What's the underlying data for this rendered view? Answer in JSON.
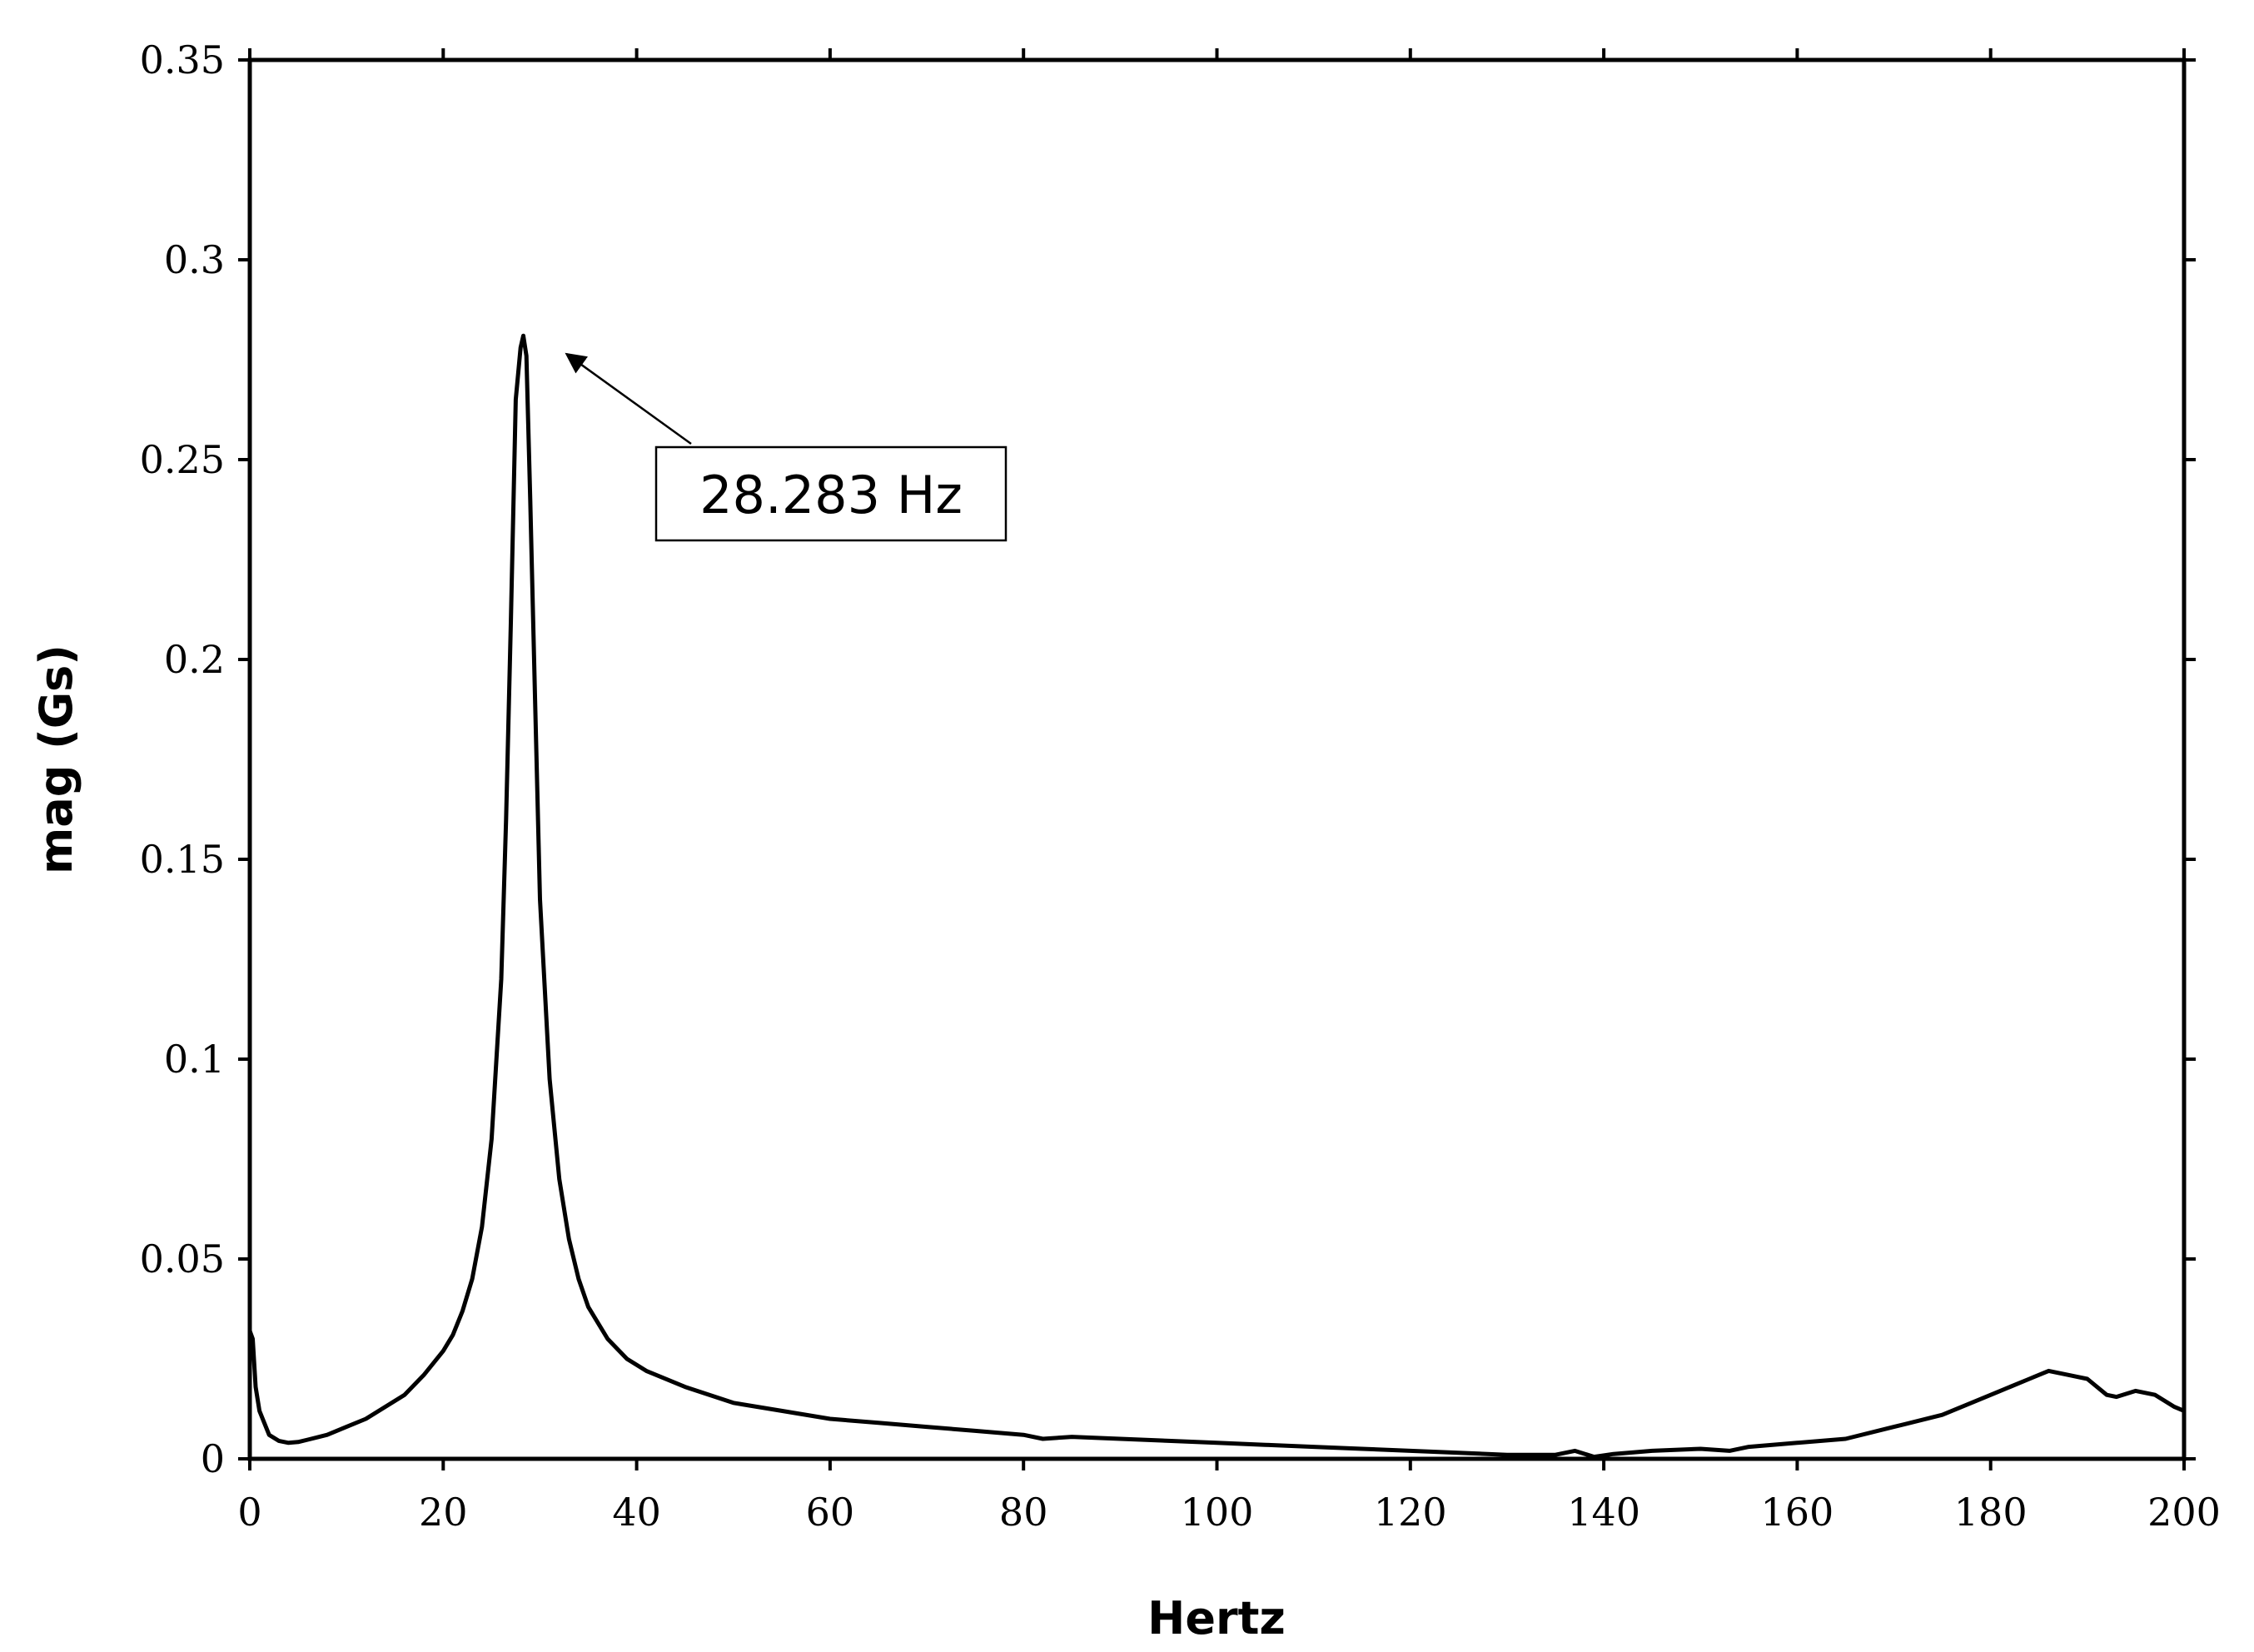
{
  "chart_data": {
    "type": "line",
    "title": "",
    "xlabel": "Hertz",
    "ylabel": "mag (Gs)",
    "xlim": [
      0,
      200
    ],
    "ylim": [
      0,
      0.35
    ],
    "grid": false,
    "x_ticks": [
      0,
      20,
      40,
      60,
      80,
      100,
      120,
      140,
      160,
      180,
      200
    ],
    "x_tick_labels": [
      "0",
      "20",
      "40",
      "60",
      "80",
      "100",
      "120",
      "140",
      "160",
      "180",
      "200"
    ],
    "y_ticks": [
      0,
      0.05,
      0.1,
      0.15,
      0.2,
      0.25,
      0.3,
      0.35
    ],
    "y_tick_labels": [
      "0",
      "0.05",
      "0.1",
      "0.15",
      "0.2",
      "0.25",
      "0.3",
      "0.35"
    ],
    "annotation": {
      "text": "28.283 Hz",
      "x": 28.283,
      "y": 0.281
    },
    "series": [
      {
        "color": "#000000",
        "points": [
          [
            0,
            0.032
          ],
          [
            0.3,
            0.03
          ],
          [
            0.6,
            0.018
          ],
          [
            1,
            0.012
          ],
          [
            1.5,
            0.009
          ],
          [
            2,
            0.006
          ],
          [
            3,
            0.0045
          ],
          [
            4,
            0.004
          ],
          [
            5,
            0.0042
          ],
          [
            6,
            0.0048
          ],
          [
            8,
            0.006
          ],
          [
            10,
            0.008
          ],
          [
            12,
            0.01
          ],
          [
            14,
            0.013
          ],
          [
            16,
            0.016
          ],
          [
            18,
            0.021
          ],
          [
            20,
            0.027
          ],
          [
            21,
            0.031
          ],
          [
            22,
            0.037
          ],
          [
            23,
            0.045
          ],
          [
            24,
            0.058
          ],
          [
            25,
            0.08
          ],
          [
            26,
            0.12
          ],
          [
            26.5,
            0.16
          ],
          [
            27,
            0.21
          ],
          [
            27.5,
            0.265
          ],
          [
            28.0,
            0.278
          ],
          [
            28.283,
            0.281
          ],
          [
            28.6,
            0.276
          ],
          [
            29.0,
            0.24
          ],
          [
            29.5,
            0.19
          ],
          [
            30,
            0.14
          ],
          [
            31,
            0.095
          ],
          [
            32,
            0.07
          ],
          [
            33,
            0.055
          ],
          [
            34,
            0.045
          ],
          [
            35,
            0.038
          ],
          [
            37,
            0.03
          ],
          [
            39,
            0.025
          ],
          [
            41,
            0.022
          ],
          [
            45,
            0.018
          ],
          [
            50,
            0.014
          ],
          [
            55,
            0.012
          ],
          [
            60,
            0.01
          ],
          [
            65,
            0.009
          ],
          [
            70,
            0.008
          ],
          [
            75,
            0.007
          ],
          [
            80,
            0.006
          ],
          [
            82,
            0.005
          ],
          [
            85,
            0.0055
          ],
          [
            90,
            0.005
          ],
          [
            95,
            0.0045
          ],
          [
            100,
            0.004
          ],
          [
            105,
            0.0035
          ],
          [
            110,
            0.003
          ],
          [
            115,
            0.0025
          ],
          [
            120,
            0.002
          ],
          [
            125,
            0.0015
          ],
          [
            130,
            0.001
          ],
          [
            135,
            0.001
          ],
          [
            137,
            0.002
          ],
          [
            139,
            0.0005
          ],
          [
            141,
            0.0012
          ],
          [
            145,
            0.002
          ],
          [
            150,
            0.0025
          ],
          [
            153,
            0.002
          ],
          [
            155,
            0.003
          ],
          [
            160,
            0.004
          ],
          [
            165,
            0.005
          ],
          [
            170,
            0.008
          ],
          [
            175,
            0.011
          ],
          [
            178,
            0.014
          ],
          [
            181,
            0.017
          ],
          [
            184,
            0.02
          ],
          [
            186,
            0.022
          ],
          [
            188,
            0.021
          ],
          [
            190,
            0.02
          ],
          [
            192,
            0.016
          ],
          [
            193,
            0.0155
          ],
          [
            195,
            0.017
          ],
          [
            197,
            0.016
          ],
          [
            199,
            0.013
          ],
          [
            200,
            0.012
          ]
        ]
      }
    ]
  }
}
